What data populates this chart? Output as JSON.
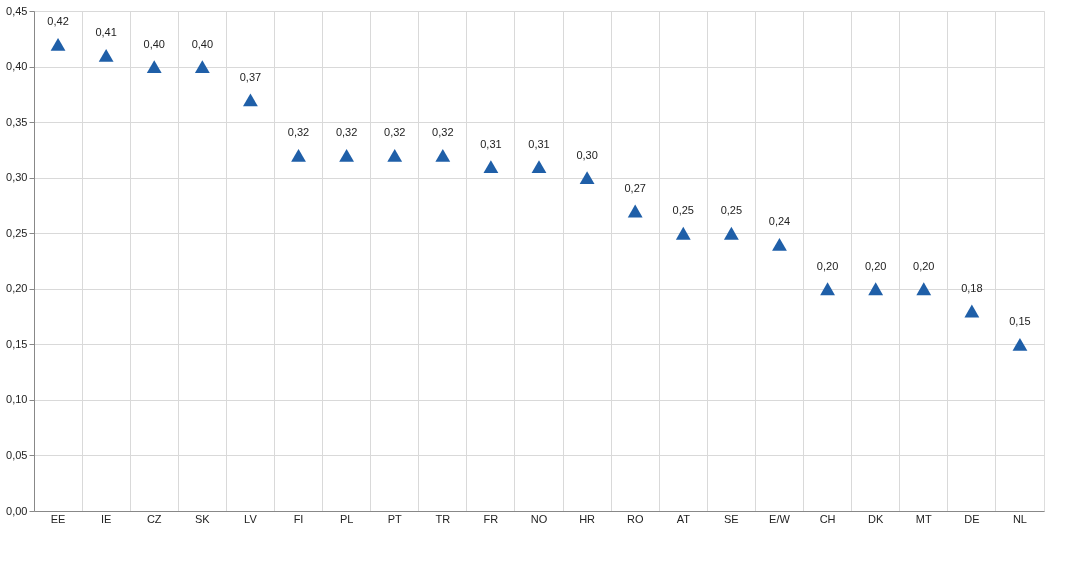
{
  "chart_data": {
    "type": "scatter",
    "categories": [
      "EE",
      "IE",
      "CZ",
      "SK",
      "LV",
      "FI",
      "PL",
      "PT",
      "TR",
      "FR",
      "NO",
      "HR",
      "RO",
      "AT",
      "SE",
      "E/W",
      "CH",
      "DK",
      "MT",
      "DE",
      "NL"
    ],
    "series": [
      {
        "color": "#1f5fa8",
        "values": [
          0.42,
          0.41,
          0.4,
          0.4,
          0.37,
          0.32,
          0.32,
          0.32,
          0.32,
          0.31,
          0.31,
          0.3,
          0.27,
          0.25,
          0.25,
          0.24,
          0.2,
          0.2,
          0.2,
          0.18,
          0.15
        ],
        "value_labels": [
          "0,42",
          "0,41",
          "0,40",
          "0,40",
          "0,37",
          "0,32",
          "0,32",
          "0,32",
          "0,32",
          "0,31",
          "0,31",
          "0,30",
          "0,27",
          "0,25",
          "0,25",
          "0,24",
          "0,20",
          "0,20",
          "0,20",
          "0,18",
          "0,15"
        ]
      }
    ],
    "ylim": [
      0,
      0.45
    ],
    "yticks": [
      {
        "value": 0,
        "label": "0,00"
      },
      {
        "value": 0.05,
        "label": "0,05"
      },
      {
        "value": 0.1,
        "label": "0,10"
      },
      {
        "value": 0.15,
        "label": "0,15"
      },
      {
        "value": 0.2,
        "label": "0,20"
      },
      {
        "value": 0.25,
        "label": "0,25"
      },
      {
        "value": 0.3,
        "label": "0,30"
      },
      {
        "value": 0.35,
        "label": "0,35"
      },
      {
        "value": 0.4,
        "label": "0,40"
      },
      {
        "value": 0.45,
        "label": "0,45"
      }
    ],
    "grid": true,
    "marker": "triangle"
  }
}
